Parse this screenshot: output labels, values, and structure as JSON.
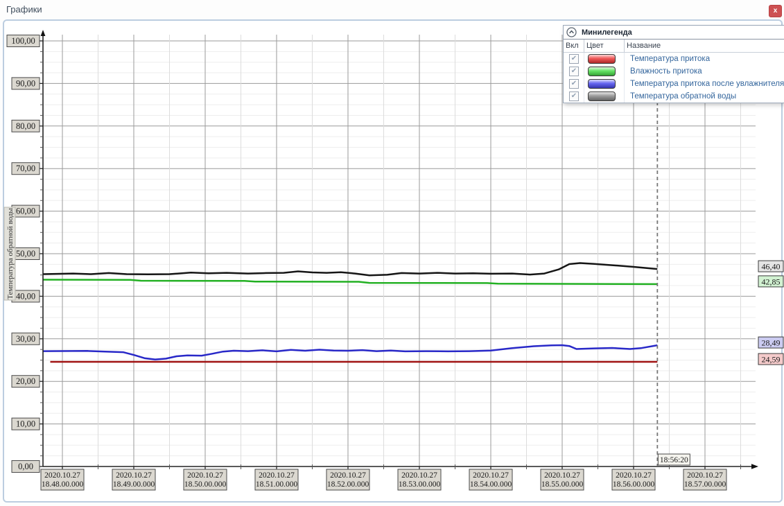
{
  "window": {
    "title": "Графики",
    "close_button": "x"
  },
  "legend": {
    "title": "Минилегенда",
    "collapse_icon": "chevron-up",
    "columns": [
      "Вкл",
      "Цвет",
      "Название"
    ],
    "rows": [
      {
        "checked": true,
        "swatch_color": "#ee3a3a",
        "name": "Температура притока"
      },
      {
        "checked": true,
        "swatch_color": "#4ade4a",
        "name": "Влажность притока"
      },
      {
        "checked": true,
        "swatch_color": "#4a4aee",
        "name": "Температура притока после увлажнителя"
      },
      {
        "checked": true,
        "swatch_color": "#8a8a8a",
        "name": "Температура обратной воды"
      }
    ]
  },
  "chart_data": {
    "type": "line",
    "ylabel": "Температура обратной воды",
    "ylim": [
      0,
      100
    ],
    "y_major_step": 10,
    "y_minor_step": 2.5,
    "y_tick_labels": [
      "0,00",
      "10,00",
      "20,00",
      "30,00",
      "40,00",
      "50,00",
      "60,00",
      "70,00",
      "80,00",
      "90,00",
      "100,00"
    ],
    "x_axis": {
      "date": "2020.10.27",
      "tick_times": [
        "18.48.00.000",
        "18.49.00.000",
        "18.50.00.000",
        "18.51.00.000",
        "18.52.00.000",
        "18.53.00.000",
        "18.54.00.000",
        "18.55.00.000",
        "18.56.00.000",
        "18.57.00.000"
      ],
      "minutes_start": 0,
      "minutes_end": 9,
      "minor_step_minutes": 0.5
    },
    "cursor": {
      "label": "18:56:20",
      "minutes": 8.3333
    },
    "series": [
      {
        "name": "Температура притока",
        "line_color": "#a01212",
        "value_label": "24,59",
        "value_label_bg": "#f4caca",
        "points": [
          [
            -0.17,
            24.59
          ],
          [
            8.333,
            24.59
          ]
        ]
      },
      {
        "name": "Влажность притока",
        "line_color": "#22b022",
        "value_label": "42,85",
        "value_label_bg": "#d2f2d2",
        "points": [
          [
            -0.27,
            43.9
          ],
          [
            0.95,
            43.85
          ],
          [
            1.1,
            43.65
          ],
          [
            2.55,
            43.6
          ],
          [
            2.7,
            43.45
          ],
          [
            4.15,
            43.4
          ],
          [
            4.3,
            43.15
          ],
          [
            5.95,
            43.1
          ],
          [
            6.1,
            42.95
          ],
          [
            8.333,
            42.85
          ]
        ]
      },
      {
        "name": "Температура притока после увлажнителя",
        "line_color": "#2828c8",
        "value_label": "28,49",
        "value_label_bg": "#ccccf2",
        "points": [
          [
            -0.27,
            27.1
          ],
          [
            0.35,
            27.15
          ],
          [
            0.6,
            27.0
          ],
          [
            0.85,
            26.85
          ],
          [
            1.0,
            26.2
          ],
          [
            1.15,
            25.45
          ],
          [
            1.3,
            25.15
          ],
          [
            1.45,
            25.35
          ],
          [
            1.6,
            25.9
          ],
          [
            1.75,
            26.1
          ],
          [
            1.95,
            26.05
          ],
          [
            2.1,
            26.5
          ],
          [
            2.25,
            27.0
          ],
          [
            2.4,
            27.2
          ],
          [
            2.6,
            27.1
          ],
          [
            2.8,
            27.3
          ],
          [
            3.0,
            27.05
          ],
          [
            3.2,
            27.4
          ],
          [
            3.4,
            27.2
          ],
          [
            3.6,
            27.45
          ],
          [
            3.8,
            27.25
          ],
          [
            4.0,
            27.2
          ],
          [
            4.2,
            27.35
          ],
          [
            4.4,
            27.1
          ],
          [
            4.6,
            27.25
          ],
          [
            4.8,
            27.05
          ],
          [
            5.1,
            27.1
          ],
          [
            5.4,
            27.05
          ],
          [
            5.7,
            27.1
          ],
          [
            6.0,
            27.25
          ],
          [
            6.3,
            27.8
          ],
          [
            6.6,
            28.25
          ],
          [
            6.85,
            28.45
          ],
          [
            7.0,
            28.5
          ],
          [
            7.1,
            28.3
          ],
          [
            7.2,
            27.6
          ],
          [
            7.45,
            27.75
          ],
          [
            7.7,
            27.85
          ],
          [
            7.95,
            27.6
          ],
          [
            8.1,
            27.8
          ],
          [
            8.333,
            28.49
          ]
        ]
      },
      {
        "name": "Температура обратной воды",
        "line_color": "#151515",
        "value_label": "46,40",
        "value_label_bg": "#e4e4e4",
        "points": [
          [
            -0.27,
            45.2
          ],
          [
            0.15,
            45.35
          ],
          [
            0.4,
            45.2
          ],
          [
            0.65,
            45.45
          ],
          [
            0.9,
            45.2
          ],
          [
            1.2,
            45.15
          ],
          [
            1.5,
            45.2
          ],
          [
            1.8,
            45.55
          ],
          [
            2.05,
            45.4
          ],
          [
            2.3,
            45.5
          ],
          [
            2.6,
            45.35
          ],
          [
            2.85,
            45.45
          ],
          [
            3.1,
            45.5
          ],
          [
            3.3,
            45.85
          ],
          [
            3.5,
            45.6
          ],
          [
            3.7,
            45.5
          ],
          [
            3.9,
            45.65
          ],
          [
            4.1,
            45.35
          ],
          [
            4.3,
            44.9
          ],
          [
            4.55,
            45.05
          ],
          [
            4.75,
            45.45
          ],
          [
            5.0,
            45.35
          ],
          [
            5.25,
            45.5
          ],
          [
            5.5,
            45.35
          ],
          [
            5.75,
            45.4
          ],
          [
            6.0,
            45.3
          ],
          [
            6.3,
            45.35
          ],
          [
            6.55,
            45.1
          ],
          [
            6.75,
            45.35
          ],
          [
            6.95,
            46.3
          ],
          [
            7.1,
            47.55
          ],
          [
            7.25,
            47.8
          ],
          [
            7.45,
            47.6
          ],
          [
            7.7,
            47.3
          ],
          [
            8.0,
            46.9
          ],
          [
            8.333,
            46.4
          ]
        ]
      }
    ]
  }
}
